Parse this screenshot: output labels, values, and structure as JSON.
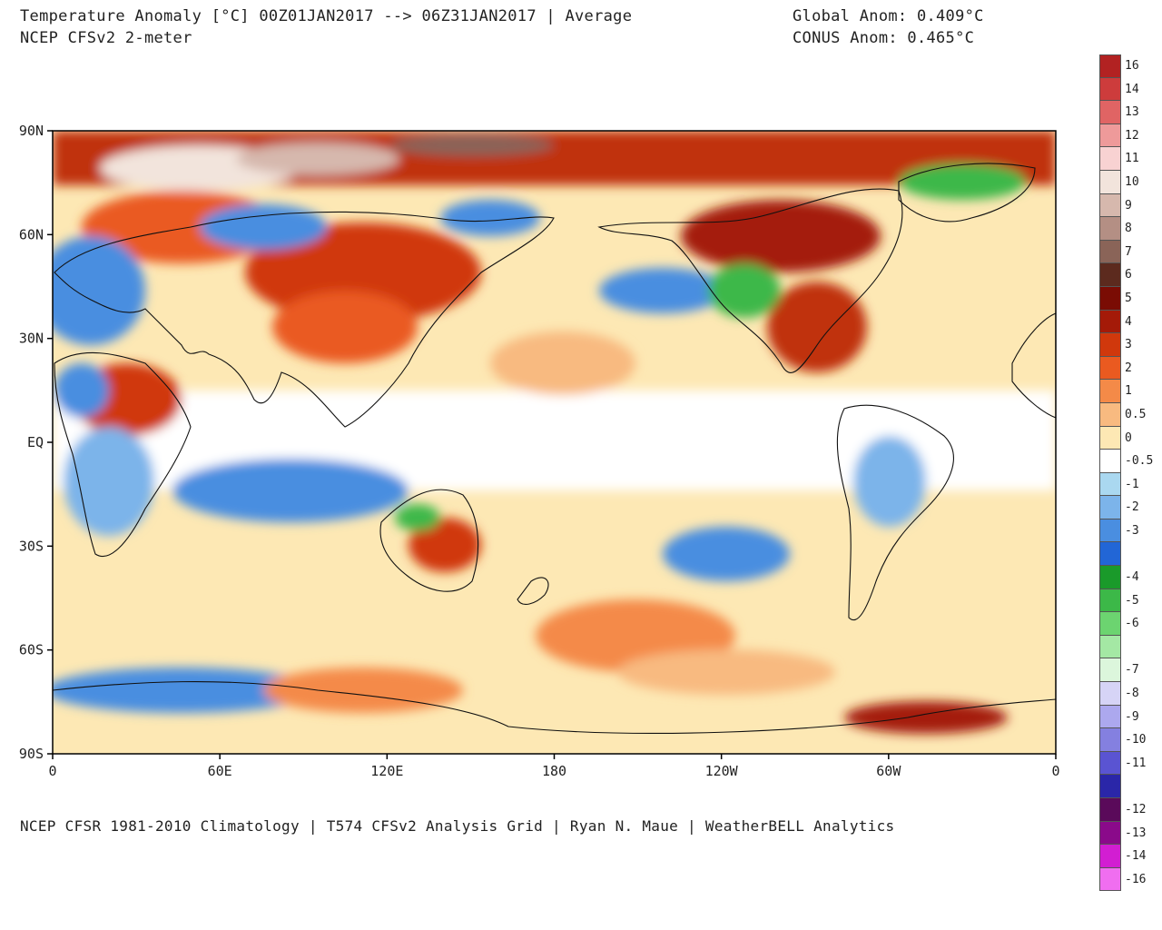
{
  "header": {
    "title_line1": "Temperature Anomaly [°C] 00Z01JAN2017 --> 06Z31JAN2017 | Average",
    "title_line2": "NCEP CFSv2 2-meter",
    "global_anom": "Global Anom: 0.409°C",
    "conus_anom": "CONUS Anom: 0.465°C"
  },
  "footer": "NCEP CFSR 1981-2010 Climatology | T574 CFSv2 Analysis Grid | Ryan N. Maue | WeatherBELL Analytics",
  "map": {
    "projection": "equirectangular, 0 to 360 longitude, Pacific-centered",
    "lat_ticks": [
      "90N",
      "60N",
      "30N",
      "EQ",
      "30S",
      "60S",
      "90S"
    ],
    "lon_ticks": [
      "0",
      "60E",
      "120E",
      "180",
      "120W",
      "60W",
      "0"
    ]
  },
  "colorbar": {
    "entries": [
      {
        "label": "16",
        "color": "#b22222"
      },
      {
        "label": "14",
        "color": "#cd3c3c"
      },
      {
        "label": "13",
        "color": "#e06464"
      },
      {
        "label": "12",
        "color": "#ee9a9a"
      },
      {
        "label": "11",
        "color": "#f8d2d2"
      },
      {
        "label": "10",
        "color": "#f2e4dc"
      },
      {
        "label": "9",
        "color": "#d6b8ad"
      },
      {
        "label": "8",
        "color": "#b48f84"
      },
      {
        "label": "7",
        "color": "#8a6458"
      },
      {
        "label": "6",
        "color": "#5c2a1e"
      },
      {
        "label": "5",
        "color": "#7a0c04"
      },
      {
        "label": "4",
        "color": "#a41a08"
      },
      {
        "label": "3",
        "color": "#d0380c"
      },
      {
        "label": "2",
        "color": "#ea5a20"
      },
      {
        "label": "1",
        "color": "#f48a48"
      },
      {
        "label": "0.5",
        "color": "#f8ba80"
      },
      {
        "label": "0",
        "color": "#fde8b4"
      },
      {
        "label": "-0.5",
        "color": "#ffffff"
      },
      {
        "label": "-1",
        "color": "#aad8f0"
      },
      {
        "label": "-2",
        "color": "#7cb4ea"
      },
      {
        "label": "-3",
        "color": "#4a8ee0"
      },
      {
        "label": "",
        "color": "#2266d6"
      },
      {
        "label": "-4",
        "color": "#1a9a2a"
      },
      {
        "label": "-5",
        "color": "#3cb848"
      },
      {
        "label": "-6",
        "color": "#6cd470"
      },
      {
        "label": "",
        "color": "#a4e8a4"
      },
      {
        "label": "-7",
        "color": "#dcf6dc"
      },
      {
        "label": "-8",
        "color": "#d6d4f6"
      },
      {
        "label": "-9",
        "color": "#aca8ee"
      },
      {
        "label": "-10",
        "color": "#8480e0"
      },
      {
        "label": "-11",
        "color": "#5a54d2"
      },
      {
        "label": "",
        "color": "#2a26a8"
      },
      {
        "label": "-12",
        "color": "#5a0a5a"
      },
      {
        "label": "-13",
        "color": "#8a0a8a"
      },
      {
        "label": "-14",
        "color": "#d21ed2"
      },
      {
        "label": "-16",
        "color": "#f06ef0"
      }
    ]
  },
  "colors": {
    "warm_strong": "#a41a08",
    "warm": "#ea5a20",
    "warm_light": "#f8ba80",
    "neutral": "#ffffff",
    "cool": "#7cb4ea",
    "cool_strong": "#2266d6",
    "green": "#3cb848",
    "arctic_light": "#f2e4dc",
    "coast_line": "#111111"
  }
}
